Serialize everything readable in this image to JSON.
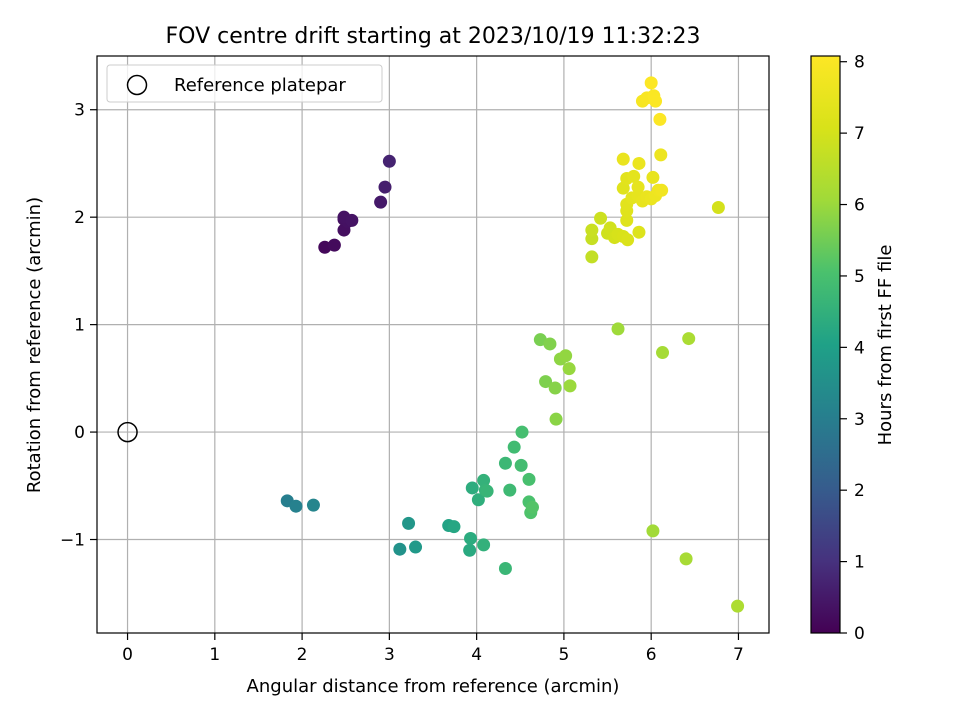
{
  "chart_data": {
    "type": "scatter",
    "title": "FOV centre drift starting at 2023/10/19 11:32:23",
    "xlabel": "Angular distance from reference (arcmin)",
    "ylabel": "Rotation from reference (arcmin)",
    "xlim": [
      -0.35,
      7.35
    ],
    "ylim": [
      -1.87,
      3.5
    ],
    "x_ticks": [
      0,
      1,
      2,
      3,
      4,
      5,
      6,
      7
    ],
    "x_tick_labels": [
      "0",
      "1",
      "2",
      "3",
      "4",
      "5",
      "6",
      "7"
    ],
    "y_ticks": [
      -1,
      0,
      1,
      2,
      3
    ],
    "y_tick_labels": [
      "−1",
      "0",
      "1",
      "2",
      "3"
    ],
    "grid": true,
    "colorbar": {
      "label": "Hours from first FF file",
      "range": [
        0,
        8.08
      ],
      "ticks": [
        0,
        1,
        2,
        3,
        4,
        5,
        6,
        7,
        8
      ],
      "tick_labels": [
        "0",
        "1",
        "2",
        "3",
        "4",
        "5",
        "6",
        "7",
        "8"
      ],
      "colormap": "viridis"
    },
    "legend": {
      "position": "top-left",
      "entries": [
        {
          "label": "Reference platepar",
          "marker": "hollow-circle"
        }
      ]
    },
    "reference": {
      "x": 0,
      "y": 0
    },
    "points": [
      [
        2.26,
        1.72,
        0.15
      ],
      [
        2.37,
        1.74,
        0.2
      ],
      [
        2.48,
        1.88,
        0.28
      ],
      [
        2.48,
        1.98,
        0.3
      ],
      [
        2.52,
        1.96,
        0.33
      ],
      [
        2.48,
        2.0,
        0.35
      ],
      [
        2.57,
        1.97,
        0.38
      ],
      [
        2.9,
        2.14,
        0.5
      ],
      [
        2.95,
        2.28,
        0.6
      ],
      [
        3.0,
        2.52,
        0.7
      ],
      [
        1.83,
        -0.64,
        3.0
      ],
      [
        1.93,
        -0.69,
        3.1
      ],
      [
        2.13,
        -0.68,
        3.2
      ],
      [
        3.12,
        -1.09,
        3.6
      ],
      [
        3.22,
        -0.85,
        3.7
      ],
      [
        3.3,
        -1.07,
        3.8
      ],
      [
        3.68,
        -0.87,
        4.1
      ],
      [
        3.74,
        -0.88,
        4.2
      ],
      [
        3.92,
        -1.1,
        4.3
      ],
      [
        3.93,
        -0.99,
        4.35
      ],
      [
        3.95,
        -0.52,
        4.4
      ],
      [
        4.02,
        -0.63,
        4.45
      ],
      [
        4.08,
        -1.05,
        4.5
      ],
      [
        4.08,
        -0.45,
        4.55
      ],
      [
        4.1,
        -0.54,
        4.6
      ],
      [
        4.12,
        -0.55,
        4.65
      ],
      [
        4.33,
        -1.27,
        4.7
      ],
      [
        4.33,
        -0.29,
        4.75
      ],
      [
        4.38,
        -0.54,
        4.8
      ],
      [
        4.43,
        -0.14,
        4.85
      ],
      [
        4.51,
        -0.31,
        4.9
      ],
      [
        4.52,
        0.0,
        4.95
      ],
      [
        4.6,
        -0.44,
        5.0
      ],
      [
        4.6,
        -0.65,
        5.05
      ],
      [
        4.62,
        -0.75,
        5.1
      ],
      [
        4.64,
        -0.7,
        5.15
      ],
      [
        4.73,
        0.86,
        5.6
      ],
      [
        4.79,
        0.47,
        5.65
      ],
      [
        4.84,
        0.82,
        5.7
      ],
      [
        4.9,
        0.41,
        5.75
      ],
      [
        4.91,
        0.12,
        5.8
      ],
      [
        4.96,
        0.68,
        5.85
      ],
      [
        5.02,
        0.71,
        5.9
      ],
      [
        5.06,
        0.59,
        5.95
      ],
      [
        5.07,
        0.43,
        6.0
      ],
      [
        5.62,
        0.96,
        6.05
      ],
      [
        6.02,
        -0.92,
        6.1
      ],
      [
        6.13,
        0.74,
        6.15
      ],
      [
        6.4,
        -1.18,
        6.2
      ],
      [
        6.43,
        0.87,
        6.25
      ],
      [
        6.99,
        -1.62,
        6.3
      ],
      [
        5.32,
        1.63,
        6.7
      ],
      [
        5.32,
        1.8,
        6.75
      ],
      [
        5.32,
        1.88,
        6.8
      ],
      [
        5.42,
        1.99,
        6.85
      ],
      [
        5.5,
        1.85,
        6.9
      ],
      [
        5.53,
        1.9,
        6.95
      ],
      [
        5.58,
        1.81,
        7.0
      ],
      [
        5.62,
        1.84,
        7.05
      ],
      [
        5.68,
        1.82,
        7.1
      ],
      [
        5.73,
        1.79,
        7.15
      ],
      [
        5.86,
        1.86,
        7.2
      ],
      [
        6.77,
        2.09,
        7.0
      ],
      [
        5.72,
        1.97,
        7.25
      ],
      [
        5.72,
        2.06,
        7.3
      ],
      [
        5.72,
        2.12,
        7.35
      ],
      [
        5.78,
        2.18,
        7.4
      ],
      [
        5.85,
        2.2,
        7.45
      ],
      [
        5.9,
        2.15,
        7.5
      ],
      [
        5.95,
        2.19,
        7.55
      ],
      [
        6.0,
        2.17,
        7.6
      ],
      [
        6.05,
        2.2,
        7.65
      ],
      [
        6.08,
        2.25,
        7.7
      ],
      [
        6.12,
        2.25,
        7.75
      ],
      [
        5.68,
        2.27,
        7.3
      ],
      [
        5.72,
        2.36,
        7.35
      ],
      [
        5.8,
        2.38,
        7.4
      ],
      [
        5.85,
        2.28,
        7.45
      ],
      [
        6.02,
        2.37,
        7.5
      ],
      [
        5.68,
        2.54,
        7.55
      ],
      [
        5.86,
        2.5,
        7.6
      ],
      [
        6.11,
        2.58,
        7.65
      ],
      [
        5.9,
        3.08,
        7.9
      ],
      [
        5.95,
        3.11,
        7.95
      ],
      [
        6.03,
        3.13,
        8.0
      ],
      [
        6.05,
        3.08,
        8.02
      ],
      [
        6.1,
        2.91,
        8.05
      ],
      [
        6.0,
        3.25,
        8.06
      ]
    ]
  }
}
